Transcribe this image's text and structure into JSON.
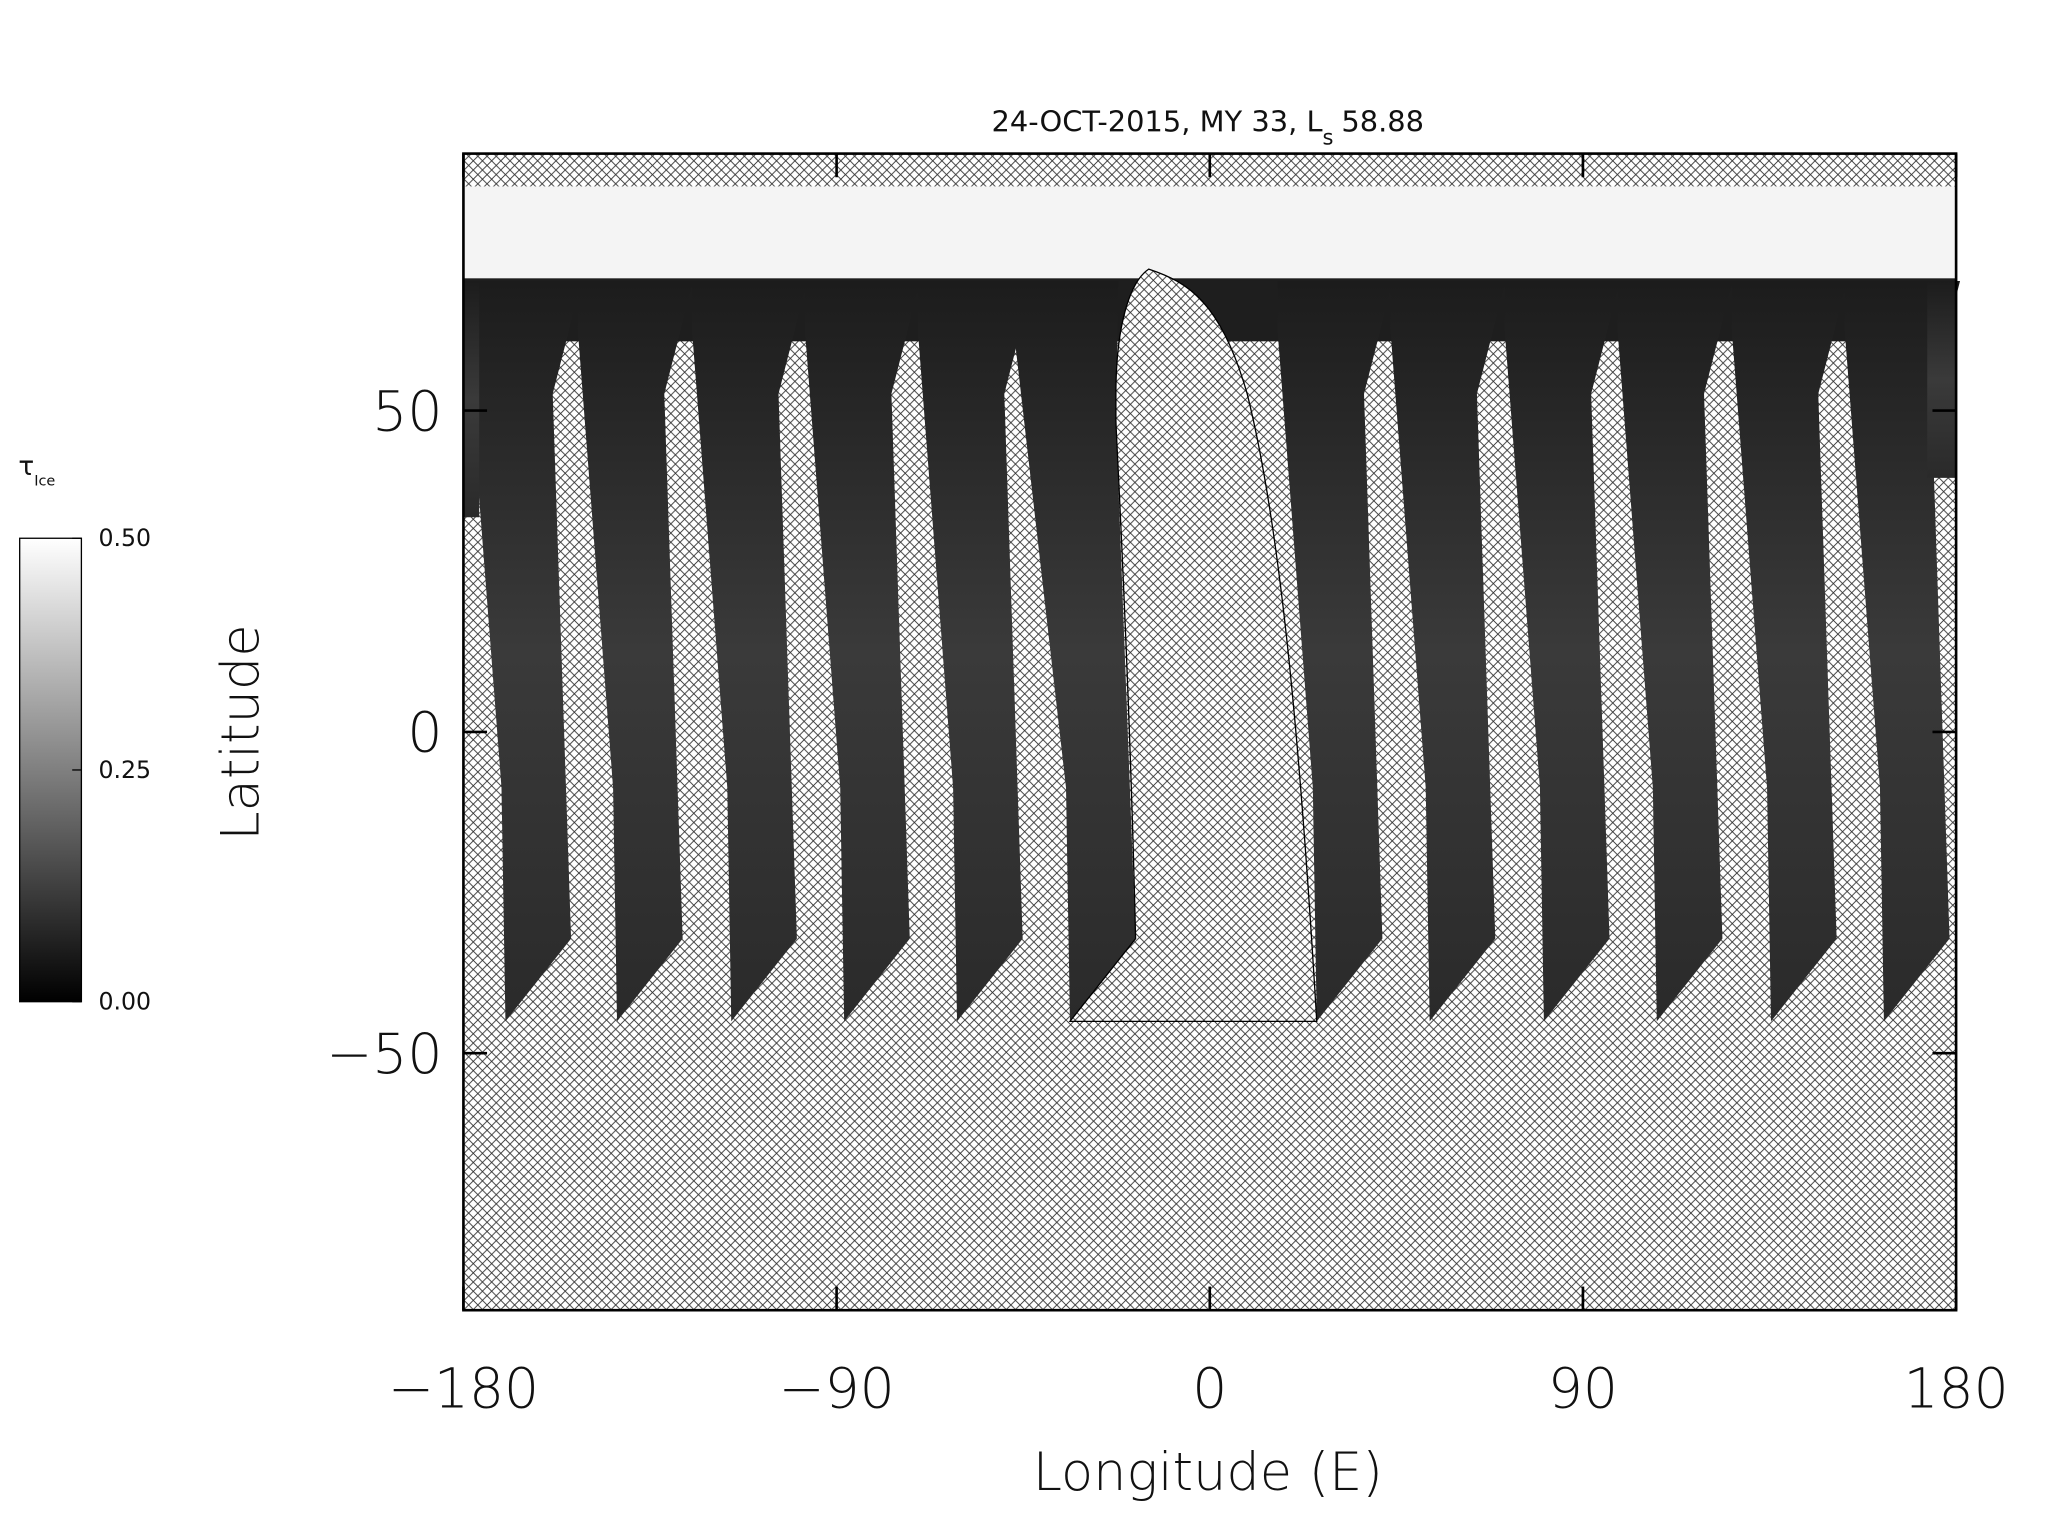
{
  "chart_data": {
    "type": "map",
    "title": "24-OCT-2015, MY 33,  L",
    "title_subscript": "s",
    "title_value": "58.88",
    "xlabel": "Longitude (E)",
    "ylabel": "Latitude",
    "xlim": [
      -180,
      180
    ],
    "ylim": [
      -90,
      90
    ],
    "xticks": [
      {
        "value": -180,
        "label": "−180"
      },
      {
        "value": -90,
        "label": "−90"
      },
      0,
      90,
      180
    ],
    "yticks": [
      {
        "value": -50,
        "label": "−50"
      },
      0,
      50
    ],
    "colorbar": {
      "label": "τ",
      "label_subscript": "Ice",
      "lim": [
        0,
        0.5
      ],
      "ticks": [
        {
          "value": 0,
          "label": "0.00"
        },
        {
          "value": 0.25,
          "label": "0.25"
        },
        {
          "value": 0.5,
          "label": "0.50"
        }
      ],
      "colors": [
        "#000000",
        "#ffffff"
      ]
    }
  }
}
